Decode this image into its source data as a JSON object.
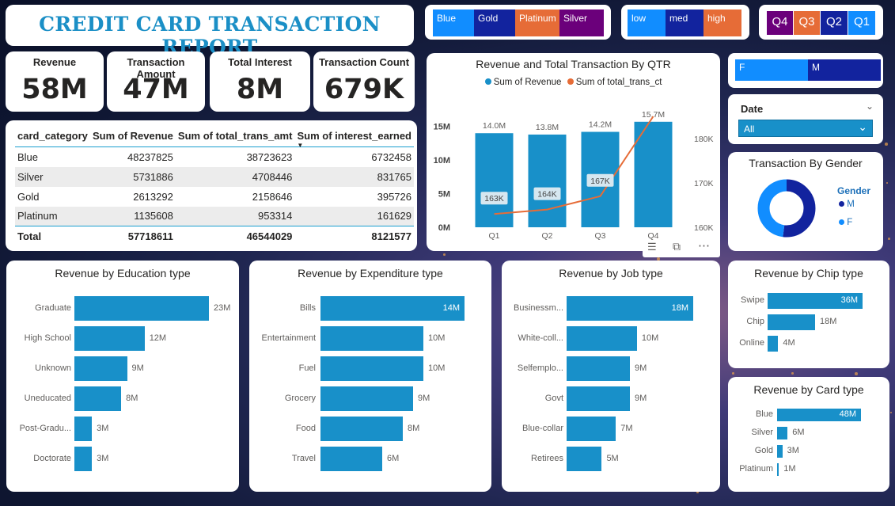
{
  "title": "CREDIT CARD TRANSACTION REPORT",
  "kpis": [
    {
      "label": "Revenue",
      "value": "58M"
    },
    {
      "label": "Transaction Amount",
      "value": "47M"
    },
    {
      "label": "Total Interest",
      "value": "8M"
    },
    {
      "label": "Transaction Count",
      "value": "679K"
    }
  ],
  "slicers": {
    "card": [
      {
        "label": "Blue",
        "color": "#118dff"
      },
      {
        "label": "Gold",
        "color": "#12239e"
      },
      {
        "label": "Platinum",
        "color": "#e66c37"
      },
      {
        "label": "Silver",
        "color": "#6b007b"
      }
    ],
    "level": [
      {
        "label": "low",
        "color": "#118dff"
      },
      {
        "label": "med",
        "color": "#12239e"
      },
      {
        "label": "high",
        "color": "#e66c37"
      }
    ],
    "quarter": [
      {
        "label": "Q4",
        "color": "#6b007b"
      },
      {
        "label": "Q3",
        "color": "#e66c37"
      },
      {
        "label": "Q2",
        "color": "#12239e"
      },
      {
        "label": "Q1",
        "color": "#118dff"
      }
    ],
    "gender": [
      {
        "label": "F",
        "color": "#118dff"
      },
      {
        "label": "M",
        "color": "#12239e"
      }
    ],
    "date": {
      "label": "Date",
      "value": "All"
    }
  },
  "table": {
    "headers": [
      "card_category",
      "Sum of Revenue",
      "Sum of total_trans_amt",
      "Sum of interest_earned"
    ],
    "rows": [
      [
        "Blue",
        "48237825",
        "38723623",
        "6732458"
      ],
      [
        "Silver",
        "5731886",
        "4708446",
        "831765"
      ],
      [
        "Gold",
        "2613292",
        "2158646",
        "395726"
      ],
      [
        "Platinum",
        "1135608",
        "953314",
        "161629"
      ]
    ],
    "total": [
      "Total",
      "57718611",
      "46544029",
      "8121577"
    ]
  },
  "chart_data": [
    {
      "type": "bar",
      "title": "Revenue and Total Transaction By QTR",
      "categories": [
        "Q1",
        "Q2",
        "Q3",
        "Q4"
      ],
      "series": [
        {
          "name": "Sum of Revenue",
          "values": [
            14.0,
            13.8,
            14.2,
            15.7
          ],
          "labels": [
            "14.0M",
            "13.8M",
            "14.2M",
            "15.7M"
          ],
          "color": "#1890c9"
        },
        {
          "name": "Sum of total_trans_ct",
          "type": "line",
          "values": [
            163,
            164,
            167,
            185
          ],
          "labels": [
            "163K",
            "164K",
            "167K",
            ""
          ],
          "color": "#e66c37"
        }
      ],
      "y_ticks": [
        "0M",
        "5M",
        "10M",
        "15M"
      ],
      "y2_ticks": [
        "160K",
        "170K",
        "180K"
      ],
      "ylim": [
        0,
        16.5
      ],
      "y2lim": [
        160,
        185
      ],
      "legend": "top"
    },
    {
      "type": "pie",
      "title": "Transaction By Gender",
      "legend_title": "Gender",
      "series": [
        {
          "name": "M",
          "value": 52,
          "color": "#12239e"
        },
        {
          "name": "F",
          "value": 48,
          "color": "#118dff"
        }
      ]
    },
    {
      "type": "bar",
      "orientation": "horizontal",
      "title": "Revenue by Education type",
      "categories": [
        "Graduate",
        "High School",
        "Unknown",
        "Uneducated",
        "Post-Gradu...",
        "Doctorate"
      ],
      "values": [
        23,
        12,
        9,
        8,
        3,
        3
      ],
      "labels": [
        "23M",
        "12M",
        "9M",
        "8M",
        "3M",
        "3M"
      ]
    },
    {
      "type": "bar",
      "orientation": "horizontal",
      "title": "Revenue by Expenditure type",
      "categories": [
        "Bills",
        "Entertainment",
        "Fuel",
        "Grocery",
        "Food",
        "Travel"
      ],
      "values": [
        14,
        10,
        10,
        9,
        8,
        6
      ],
      "labels": [
        "14M",
        "10M",
        "10M",
        "9M",
        "8M",
        "6M"
      ]
    },
    {
      "type": "bar",
      "orientation": "horizontal",
      "title": "Revenue by Job type",
      "categories": [
        "Businessm...",
        "White-coll...",
        "Selfemplo...",
        "Govt",
        "Blue-collar",
        "Retirees"
      ],
      "values": [
        18,
        10,
        9,
        9,
        7,
        5
      ],
      "labels": [
        "18M",
        "10M",
        "9M",
        "9M",
        "7M",
        "5M"
      ]
    },
    {
      "type": "bar",
      "orientation": "horizontal",
      "title": "Revenue by Chip type",
      "categories": [
        "Swipe",
        "Chip",
        "Online"
      ],
      "values": [
        36,
        18,
        4
      ],
      "labels": [
        "36M",
        "18M",
        "4M"
      ]
    },
    {
      "type": "bar",
      "orientation": "horizontal",
      "title": "Revenue by Card type",
      "categories": [
        "Blue",
        "Silver",
        "Gold",
        "Platinum"
      ],
      "values": [
        48,
        6,
        3,
        1
      ],
      "labels": [
        "48M",
        "6M",
        "3M",
        "1M"
      ]
    }
  ]
}
